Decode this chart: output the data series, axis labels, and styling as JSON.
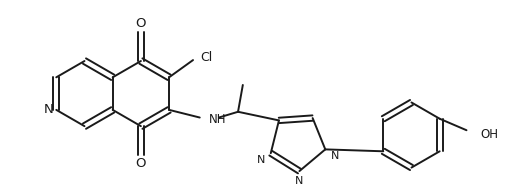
{
  "bg_color": "#ffffff",
  "line_color": "#1a1a1a",
  "line_width": 1.4,
  "font_size": 8.5,
  "fig_width": 5.1,
  "fig_height": 1.86,
  "dpi": 100,
  "xlim": [
    0,
    510
  ],
  "ylim": [
    0,
    186
  ]
}
